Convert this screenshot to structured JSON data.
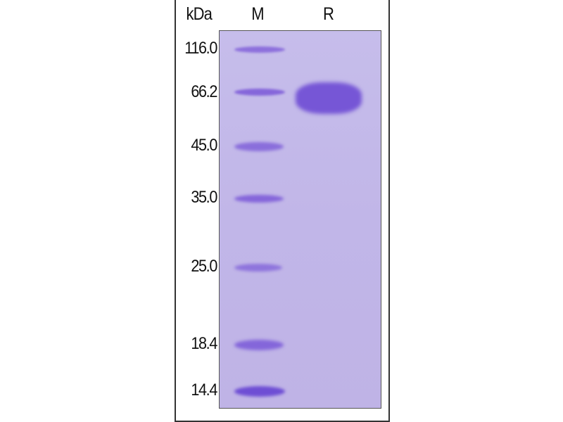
{
  "header": {
    "unit": "kDa",
    "lanes": [
      "M",
      "R"
    ]
  },
  "marker_kda": [
    "116.0",
    "66.2",
    "45.0",
    "35.0",
    "25.0",
    "18.4",
    "14.4"
  ],
  "colors": {
    "gel": "#c3b9e9",
    "band": "#7656d6",
    "frame": "#333333"
  },
  "sample_band_near_kda": "66.2"
}
